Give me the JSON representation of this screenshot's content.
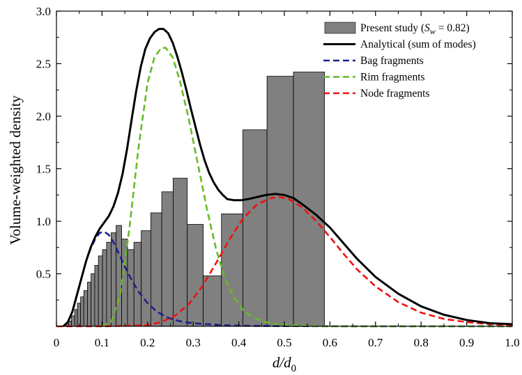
{
  "chart_data": {
    "type": "bar+line",
    "xlabel": "d/d0",
    "ylabel": "Volume-weighted density",
    "xlim": [
      0,
      1.0
    ],
    "ylim": [
      0,
      3.0
    ],
    "x_ticks": [
      "0",
      "0.1",
      "0.2",
      "0.3",
      "0.4",
      "0.5",
      "0.6",
      "0.7",
      "0.8",
      "0.9",
      "1.0"
    ],
    "y_ticks": [
      "0.5",
      "1.0",
      "1.5",
      "2.0",
      "2.5",
      "3.0"
    ],
    "grid": false,
    "legend_position": "top-right",
    "legend": [
      {
        "label_pre": "Present study (",
        "label_var": "S",
        "label_sub": "w",
        "label_post": " = 0.82)",
        "kind": "bar",
        "color": "#808080"
      },
      {
        "label": "Analytical (sum of modes)",
        "kind": "solid",
        "color": "#000000"
      },
      {
        "label": "Bag fragments",
        "kind": "dashed",
        "color": "#1f1f8f"
      },
      {
        "label": "Rim fragments",
        "kind": "dashed",
        "color": "#66bb22"
      },
      {
        "label": "Node fragments",
        "kind": "dashed",
        "color": "#ee1111"
      }
    ],
    "histogram": {
      "name": "Present study",
      "color": "#808080",
      "bins": [
        {
          "x0": 0.02,
          "x1": 0.027,
          "value": 0.02
        },
        {
          "x0": 0.027,
          "x1": 0.033,
          "value": 0.05
        },
        {
          "x0": 0.033,
          "x1": 0.04,
          "value": 0.1
        },
        {
          "x0": 0.04,
          "x1": 0.046,
          "value": 0.16
        },
        {
          "x0": 0.046,
          "x1": 0.053,
          "value": 0.22
        },
        {
          "x0": 0.053,
          "x1": 0.06,
          "value": 0.28
        },
        {
          "x0": 0.06,
          "x1": 0.068,
          "value": 0.34
        },
        {
          "x0": 0.068,
          "x1": 0.076,
          "value": 0.42
        },
        {
          "x0": 0.076,
          "x1": 0.084,
          "value": 0.5
        },
        {
          "x0": 0.084,
          "x1": 0.092,
          "value": 0.58
        },
        {
          "x0": 0.092,
          "x1": 0.101,
          "value": 0.67
        },
        {
          "x0": 0.101,
          "x1": 0.11,
          "value": 0.73
        },
        {
          "x0": 0.11,
          "x1": 0.12,
          "value": 0.8
        },
        {
          "x0": 0.12,
          "x1": 0.131,
          "value": 0.89
        },
        {
          "x0": 0.131,
          "x1": 0.143,
          "value": 0.96
        },
        {
          "x0": 0.143,
          "x1": 0.156,
          "value": 0.83
        },
        {
          "x0": 0.156,
          "x1": 0.17,
          "value": 0.73
        },
        {
          "x0": 0.17,
          "x1": 0.186,
          "value": 0.8
        },
        {
          "x0": 0.186,
          "x1": 0.207,
          "value": 0.91
        },
        {
          "x0": 0.207,
          "x1": 0.231,
          "value": 1.08
        },
        {
          "x0": 0.231,
          "x1": 0.256,
          "value": 1.28
        },
        {
          "x0": 0.256,
          "x1": 0.287,
          "value": 1.41
        },
        {
          "x0": 0.287,
          "x1": 0.322,
          "value": 0.97
        },
        {
          "x0": 0.322,
          "x1": 0.362,
          "value": 0.48
        },
        {
          "x0": 0.362,
          "x1": 0.409,
          "value": 1.07
        },
        {
          "x0": 0.409,
          "x1": 0.462,
          "value": 1.87
        },
        {
          "x0": 0.462,
          "x1": 0.52,
          "value": 2.38
        },
        {
          "x0": 0.52,
          "x1": 0.588,
          "value": 2.42
        }
      ]
    },
    "series": [
      {
        "name": "Bag fragments",
        "color": "#1f1f8f",
        "dash": true,
        "x": [
          0.015,
          0.025,
          0.035,
          0.045,
          0.055,
          0.065,
          0.075,
          0.085,
          0.095,
          0.105,
          0.115,
          0.125,
          0.135,
          0.15,
          0.165,
          0.18,
          0.2,
          0.22,
          0.24,
          0.26,
          0.28,
          0.3,
          0.33,
          0.36,
          0.4,
          0.45,
          0.5,
          0.6,
          0.7,
          0.8,
          0.9,
          1.0
        ],
        "y": [
          0.0,
          0.04,
          0.14,
          0.3,
          0.46,
          0.62,
          0.74,
          0.83,
          0.89,
          0.9,
          0.87,
          0.8,
          0.71,
          0.57,
          0.44,
          0.33,
          0.22,
          0.14,
          0.09,
          0.06,
          0.04,
          0.03,
          0.02,
          0.012,
          0.006,
          0.003,
          0.002,
          0.001,
          0.0,
          0.0,
          0.0,
          0.0
        ]
      },
      {
        "name": "Rim fragments",
        "color": "#66bb22",
        "dash": true,
        "x": [
          0.1,
          0.12,
          0.14,
          0.16,
          0.18,
          0.2,
          0.215,
          0.23,
          0.24,
          0.255,
          0.27,
          0.29,
          0.31,
          0.33,
          0.35,
          0.37,
          0.39,
          0.41,
          0.43,
          0.45,
          0.48,
          0.52,
          0.58,
          0.7,
          0.85,
          1.0
        ],
        "y": [
          0.0,
          0.04,
          0.3,
          0.93,
          1.7,
          2.32,
          2.56,
          2.65,
          2.65,
          2.56,
          2.35,
          1.98,
          1.55,
          1.12,
          0.74,
          0.45,
          0.27,
          0.15,
          0.09,
          0.05,
          0.02,
          0.01,
          0.0,
          0.0,
          0.0,
          0.0
        ]
      },
      {
        "name": "Node fragments",
        "color": "#ee1111",
        "dash": true,
        "x": [
          0.0,
          0.1,
          0.2,
          0.23,
          0.26,
          0.29,
          0.32,
          0.35,
          0.38,
          0.41,
          0.44,
          0.47,
          0.49,
          0.51,
          0.54,
          0.57,
          0.6,
          0.63,
          0.66,
          0.7,
          0.75,
          0.8,
          0.85,
          0.9,
          0.95,
          1.0
        ],
        "y": [
          0.0,
          0.0,
          0.01,
          0.04,
          0.1,
          0.21,
          0.38,
          0.6,
          0.83,
          1.03,
          1.16,
          1.22,
          1.23,
          1.21,
          1.13,
          1.0,
          0.85,
          0.69,
          0.54,
          0.38,
          0.23,
          0.13,
          0.07,
          0.04,
          0.02,
          0.01
        ]
      },
      {
        "name": "Analytical (sum of modes)",
        "color": "#000000",
        "dash": false,
        "x": [
          0.015,
          0.025,
          0.035,
          0.045,
          0.055,
          0.065,
          0.075,
          0.085,
          0.095,
          0.105,
          0.115,
          0.125,
          0.135,
          0.145,
          0.155,
          0.165,
          0.175,
          0.185,
          0.195,
          0.205,
          0.215,
          0.225,
          0.235,
          0.245,
          0.255,
          0.265,
          0.275,
          0.285,
          0.295,
          0.305,
          0.315,
          0.325,
          0.335,
          0.345,
          0.355,
          0.365,
          0.375,
          0.39,
          0.405,
          0.42,
          0.44,
          0.46,
          0.48,
          0.5,
          0.52,
          0.54,
          0.57,
          0.6,
          0.63,
          0.66,
          0.7,
          0.75,
          0.8,
          0.85,
          0.9,
          0.95,
          1.0
        ],
        "y": [
          0.0,
          0.04,
          0.14,
          0.3,
          0.46,
          0.62,
          0.75,
          0.85,
          0.93,
          0.99,
          1.05,
          1.14,
          1.27,
          1.45,
          1.69,
          1.97,
          2.24,
          2.47,
          2.64,
          2.74,
          2.8,
          2.83,
          2.83,
          2.79,
          2.7,
          2.57,
          2.42,
          2.25,
          2.07,
          1.9,
          1.73,
          1.58,
          1.46,
          1.37,
          1.3,
          1.25,
          1.21,
          1.2,
          1.2,
          1.21,
          1.23,
          1.25,
          1.26,
          1.25,
          1.22,
          1.16,
          1.06,
          0.94,
          0.79,
          0.64,
          0.47,
          0.31,
          0.19,
          0.11,
          0.06,
          0.03,
          0.02
        ]
      }
    ]
  }
}
